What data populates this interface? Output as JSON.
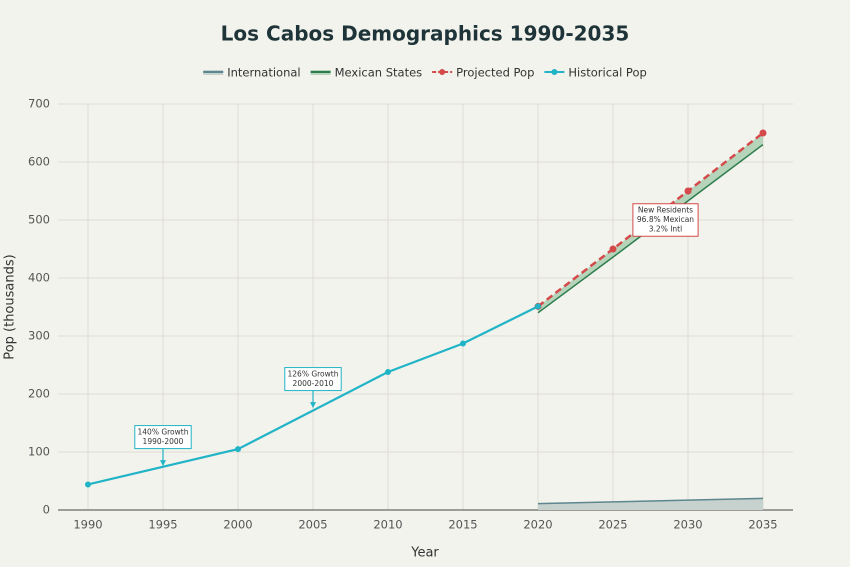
{
  "chart_data": {
    "type": "line",
    "title": "Los Cabos Demographics 1990-2035",
    "x_label": "Year",
    "y_label": "Pop (thousands)",
    "xlim": [
      1988,
      2037
    ],
    "xticks": [
      1990,
      1995,
      2000,
      2005,
      2010,
      2015,
      2020,
      2025,
      2030,
      2035
    ],
    "ylim": [
      0,
      700
    ],
    "yticks": [
      0,
      100,
      200,
      300,
      400,
      500,
      600,
      700
    ],
    "grid": true,
    "legend": "top",
    "series": [
      {
        "name": "International",
        "kind": "area",
        "color": "#5d878f",
        "fill": "#c7d1cd",
        "x": [
          2020,
          2025,
          2030,
          2035
        ],
        "values": [
          11,
          14,
          17,
          20
        ]
      },
      {
        "name": "Mexican States",
        "kind": "band",
        "color": "#2e7d4f",
        "fill": "#b5d4b9",
        "x": [
          2020,
          2025,
          2030,
          2035
        ],
        "values": [
          340,
          436,
          533,
          630
        ]
      },
      {
        "name": "Projected Pop",
        "kind": "dashed",
        "color": "#d44a4a",
        "x": [
          2020,
          2025,
          2030,
          2035
        ],
        "values": [
          351,
          450,
          550,
          650
        ]
      },
      {
        "name": "Historical Pop",
        "kind": "line",
        "color": "#21b4c6",
        "x": [
          1990,
          2000,
          2010,
          2015,
          2020
        ],
        "values": [
          44,
          105,
          238,
          287,
          351
        ]
      }
    ],
    "annotations": [
      {
        "lines": [
          "140% Growth",
          "1990-2000"
        ],
        "x": 1995,
        "y": 74,
        "color": "#21b4c6",
        "arrow": true
      },
      {
        "lines": [
          "126% Growth",
          "2000-2010"
        ],
        "x": 2005,
        "y": 174,
        "color": "#21b4c6",
        "arrow": true
      },
      {
        "lines": [
          "New Residents",
          "96.8% Mexican",
          "3.2% Intl"
        ],
        "x": 2028.5,
        "y": 500,
        "color": "#d44a4a",
        "arrow": false
      }
    ]
  }
}
